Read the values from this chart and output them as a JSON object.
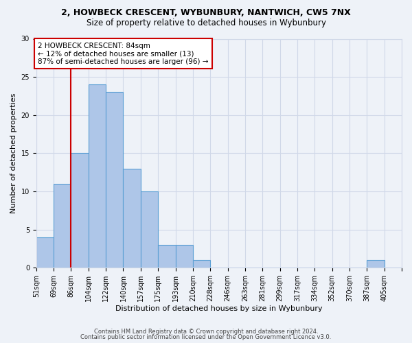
{
  "title": "2, HOWBECK CRESCENT, WYBUNBURY, NANTWICH, CW5 7NX",
  "subtitle": "Size of property relative to detached houses in Wybunbury",
  "xlabel": "Distribution of detached houses by size in Wybunbury",
  "ylabel": "Number of detached properties",
  "bin_labels": [
    "51sqm",
    "69sqm",
    "86sqm",
    "104sqm",
    "122sqm",
    "140sqm",
    "157sqm",
    "175sqm",
    "193sqm",
    "210sqm",
    "228sqm",
    "246sqm",
    "263sqm",
    "281sqm",
    "299sqm",
    "317sqm",
    "334sqm",
    "352sqm",
    "370sqm",
    "387sqm",
    "405sqm"
  ],
  "bar_values": [
    4,
    11,
    15,
    24,
    23,
    13,
    10,
    3,
    3,
    1,
    0,
    0,
    0,
    0,
    0,
    0,
    0,
    0,
    0,
    1,
    0
  ],
  "bar_color": "#aec6e8",
  "bar_edge_color": "#5a9fd4",
  "red_line_after_bin": 1,
  "annotation_line1": "2 HOWBECK CRESCENT: 84sqm",
  "annotation_line2": "← 12% of detached houses are smaller (13)",
  "annotation_line3": "87% of semi-detached houses are larger (96) →",
  "annotation_box_color": "#ffffff",
  "annotation_box_edge_color": "#cc0000",
  "red_line_color": "#cc0000",
  "ylim": [
    0,
    30
  ],
  "yticks": [
    0,
    5,
    10,
    15,
    20,
    25,
    30
  ],
  "grid_color": "#d0d8e8",
  "footer1": "Contains HM Land Registry data © Crown copyright and database right 2024.",
  "footer2": "Contains public sector information licensed under the Open Government Licence v3.0.",
  "background_color": "#eef2f8",
  "title_fontsize": 9,
  "subtitle_fontsize": 8.5,
  "ylabel_fontsize": 8,
  "xlabel_fontsize": 8,
  "tick_fontsize": 7,
  "annotation_fontsize": 7.5,
  "footer_fontsize": 6
}
